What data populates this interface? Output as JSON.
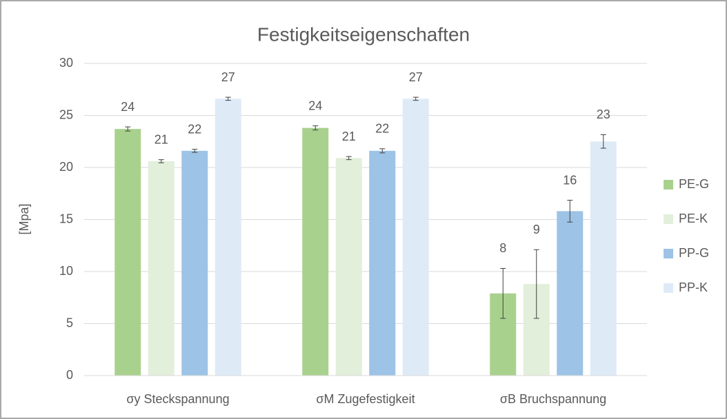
{
  "chart_data": {
    "type": "bar",
    "title": "Festigkeitseigenschaften",
    "y_label": "[Mpa]",
    "categories": [
      "σy Steckspannung",
      "σM Zugefestigkeit",
      "σB Bruchspannung"
    ],
    "series": [
      {
        "name": "PE-G",
        "color": "#a9d18e",
        "values": [
          23.7,
          23.8,
          7.9
        ],
        "value_labels": [
          "24",
          "24",
          "8"
        ],
        "errors": [
          0.2,
          0.2,
          2.4
        ]
      },
      {
        "name": "PE-K",
        "color": "#e2efda",
        "values": [
          20.6,
          20.9,
          8.8
        ],
        "value_labels": [
          "21",
          "21",
          "9"
        ],
        "errors": [
          0.15,
          0.15,
          3.3
        ]
      },
      {
        "name": "PP-G",
        "color": "#9dc3e6",
        "values": [
          21.6,
          21.6,
          15.8
        ],
        "value_labels": [
          "22",
          "22",
          "16"
        ],
        "errors": [
          0.15,
          0.2,
          1.05
        ]
      },
      {
        "name": "PP-K",
        "color": "#deebf7",
        "values": [
          26.6,
          26.6,
          22.5
        ],
        "value_labels": [
          "27",
          "27",
          "23"
        ],
        "errors": [
          0.15,
          0.15,
          0.65
        ]
      }
    ],
    "ylim": [
      0,
      30
    ],
    "yticks": [
      0,
      5,
      10,
      15,
      20,
      25,
      30
    ],
    "grid": true,
    "legend": "right"
  }
}
